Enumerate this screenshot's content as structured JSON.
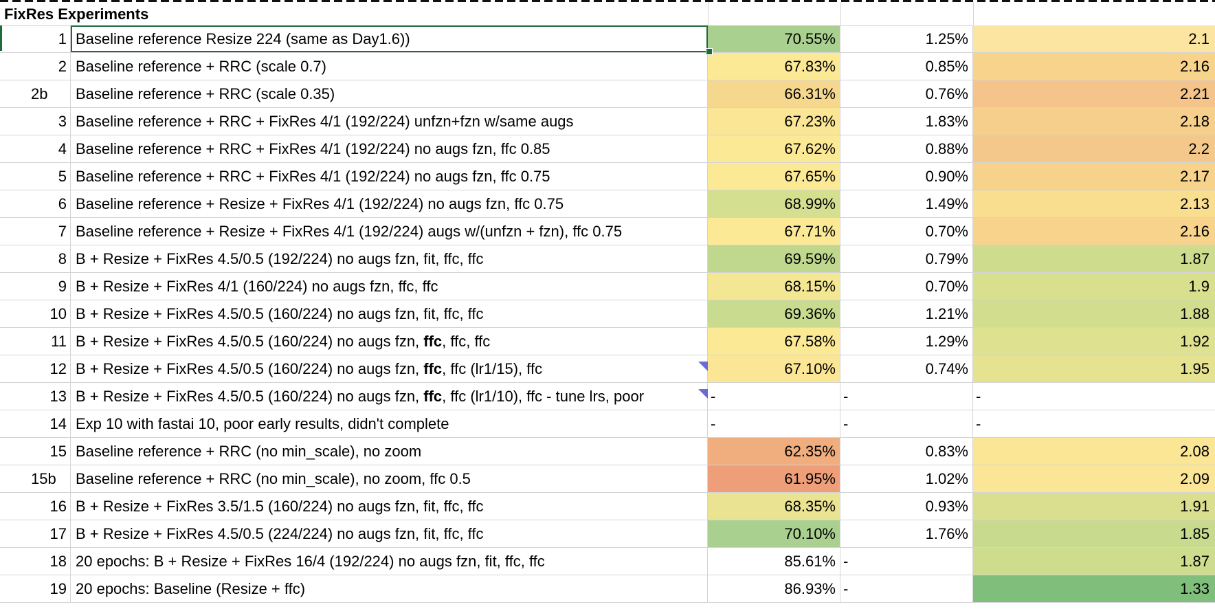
{
  "sheet": {
    "title": "FixRes Experiments",
    "rows": [
      {
        "id": "1",
        "desc": "Baseline reference Resize 224 (same as Day1.6))",
        "v1": "70.55%",
        "v2": "1.25%",
        "v3": "2.1",
        "c1": "#a9d08e",
        "c3": "#fbe5a0",
        "selected": true
      },
      {
        "id": "2",
        "desc": "Baseline reference + RRC (scale 0.7)",
        "v1": "67.83%",
        "v2": "0.85%",
        "v3": "2.16",
        "c1": "#fce996",
        "c3": "#f7d38b"
      },
      {
        "id": "2b",
        "desc": "Baseline reference + RRC (scale 0.35)",
        "v1": "66.31%",
        "v2": "0.76%",
        "v3": "2.21",
        "c1": "#f6d78e",
        "c3": "#f4c48a",
        "align": "left"
      },
      {
        "id": "3",
        "desc": "Baseline reference + RRC + FixRes 4/1 (192/224) unfzn+fzn w/same augs",
        "v1": "67.23%",
        "v2": "1.83%",
        "v3": "2.18",
        "c1": "#fae694",
        "c3": "#f5cf8b"
      },
      {
        "id": "4",
        "desc": "Baseline reference + RRC + FixRes 4/1 (192/224) no augs fzn, ffc 0.85",
        "v1": "67.62%",
        "v2": "0.88%",
        "v3": "2.2",
        "c1": "#fce996",
        "c3": "#f4c88a"
      },
      {
        "id": "5",
        "desc": "Baseline reference + RRC + FixRes 4/1 (192/224) no augs fzn, ffc 0.75",
        "v1": "67.65%",
        "v2": "0.90%",
        "v3": "2.17",
        "c1": "#fce996",
        "c3": "#f6d28b"
      },
      {
        "id": "6",
        "desc": "Baseline reference + Resize + FixRes 4/1 (192/224) no augs fzn, ffc 0.75",
        "v1": "68.99%",
        "v2": "1.49%",
        "v3": "2.13",
        "c1": "#d4df8f",
        "c3": "#f9de90"
      },
      {
        "id": "7",
        "desc": "Baseline reference + Resize + FixRes 4/1 (192/224) augs w/(unfzn + fzn), ffc 0.75",
        "v1": "67.71%",
        "v2": "0.70%",
        "v3": "2.16",
        "c1": "#fce996",
        "c3": "#f7d38b"
      },
      {
        "id": "8",
        "desc": "B + Resize + FixRes 4.5/0.5 (192/224) no augs fzn, fit, ffc, ffc",
        "v1": "69.59%",
        "v2": "0.79%",
        "v3": "1.87",
        "c1": "#bfd88d",
        "c3": "#cedd8d"
      },
      {
        "id": "9",
        "desc": "B + Resize + FixRes 4/1 (160/224) no augs fzn, ffc, ffc",
        "v1": "68.15%",
        "v2": "0.70%",
        "v3": "1.9",
        "c1": "#f3e793",
        "c3": "#d8e08e"
      },
      {
        "id": "10",
        "desc": "B + Resize + FixRes 4.5/0.5 (160/224) no augs fzn, fit, ffc, ffc",
        "v1": "69.36%",
        "v2": "1.21%",
        "v3": "1.88",
        "c1": "#c8db8e",
        "c3": "#d2de8e"
      },
      {
        "id": "11",
        "desc_pre": "B + Resize + FixRes 4.5/0.5 (160/224) no augs fzn, ",
        "desc_bold": "ffc",
        "desc_post": ", ffc, ffc",
        "v1": "67.58%",
        "v2": "1.29%",
        "v3": "1.92",
        "c1": "#fce996",
        "c3": "#dee18f"
      },
      {
        "id": "12",
        "desc_pre": "B + Resize + FixRes 4.5/0.5 (160/224) no augs fzn, ",
        "desc_bold": "ffc",
        "desc_post": ", ffc (lr1/15), ffc",
        "v1": "67.10%",
        "v2": "0.74%",
        "v3": "1.95",
        "c1": "#fae694",
        "c3": "#e6e390"
      },
      {
        "id": "13",
        "desc_pre": "B + Resize + FixRes 4.5/0.5 (160/224) no augs fzn, ",
        "desc_bold": "ffc",
        "desc_post": ", ffc (lr1/10), ffc - tune lrs, poor",
        "v1": "-",
        "v2": "-",
        "v3": "-",
        "c1": "",
        "c3": "",
        "dash": true
      },
      {
        "id": "14",
        "desc": "Exp 10 with fastai 10, poor early results, didn't complete",
        "v1": "-",
        "v2": "-",
        "v3": "-",
        "c1": "",
        "c3": "",
        "dash": true
      },
      {
        "id": "15",
        "desc": "Baseline reference + RRC (no min_scale), no zoom",
        "v1": "62.35%",
        "v2": "0.83%",
        "v3": "2.08",
        "c1": "#f0ad7d",
        "c3": "#fbe696"
      },
      {
        "id": "15b",
        "desc": "Baseline reference + RRC (no min_scale), no zoom, ffc 0.5",
        "v1": "61.95%",
        "v2": "1.02%",
        "v3": "2.09",
        "c1": "#ee9f79",
        "c3": "#fbe596",
        "align": "left"
      },
      {
        "id": "16",
        "desc": "B + Resize + FixRes 3.5/1.5 (160/224) no augs fzn, fit, ffc, ffc",
        "v1": "68.35%",
        "v2": "0.93%",
        "v3": "1.91",
        "c1": "#eae492",
        "c3": "#dadf8f"
      },
      {
        "id": "17",
        "desc": "B + Resize + FixRes 4.5/0.5 (224/224) no augs fzn, fit, ffc, ffc",
        "v1": "70.10%",
        "v2": "1.76%",
        "v3": "1.85",
        "c1": "#a9d08e",
        "c3": "#c8da8e"
      },
      {
        "id": "18",
        "desc": "20 epochs: B + Resize + FixRes 16/4 (192/224) no augs fzn, fit, ffc, ffc",
        "v1": "85.61%",
        "v2": "-",
        "v3": "1.87",
        "c1": "",
        "c3": "#cedd8d",
        "v2dash": true
      },
      {
        "id": "19",
        "desc": "20 epochs: Baseline (Resize + ffc)",
        "v1": "86.93%",
        "v2": "-",
        "v3": "1.33",
        "c1": "",
        "c3": "#7fbf7b",
        "v2dash": true
      }
    ]
  }
}
